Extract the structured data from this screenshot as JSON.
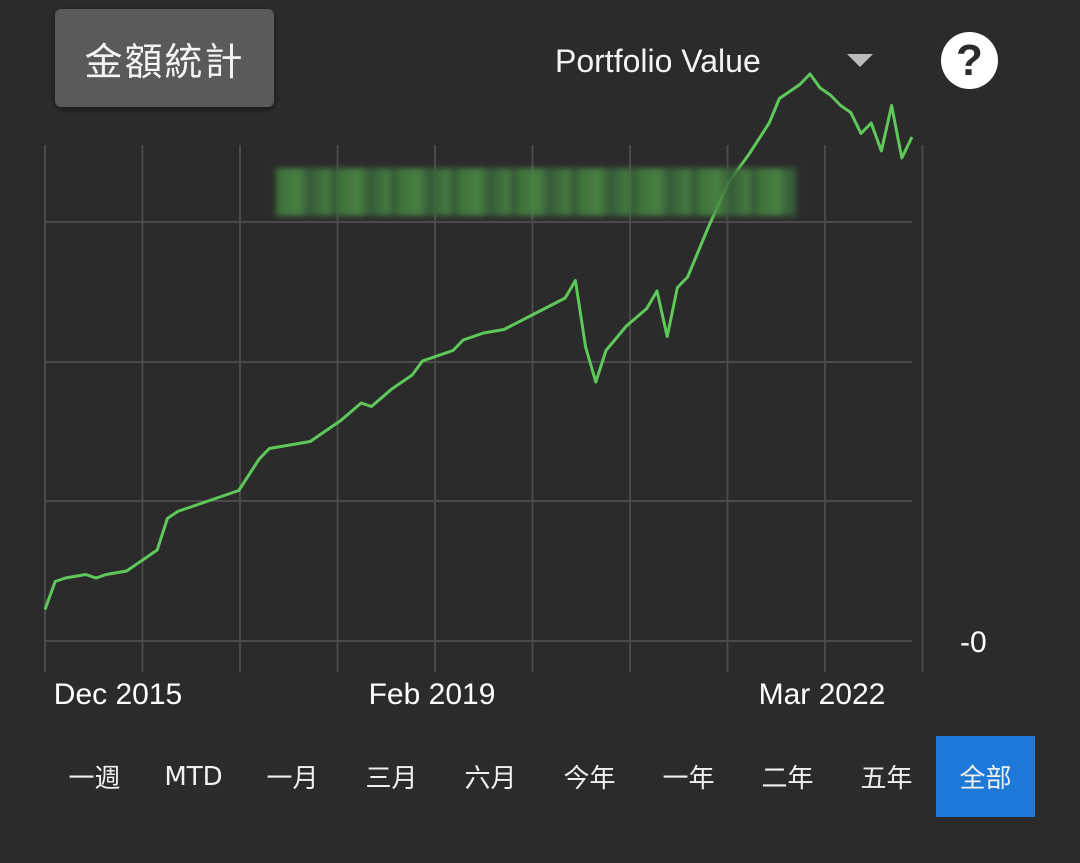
{
  "header": {
    "title": "金額統計",
    "metric_select": "Portfolio Value",
    "help_label": "?"
  },
  "colors": {
    "background": "#2b2b2b",
    "line": "#5ec95a",
    "grid": "#4a4a4a",
    "active_range": "#1e78d8"
  },
  "chart_data": {
    "type": "line",
    "x_tick_labels": [
      "Dec 2015",
      "Feb 2019",
      "Mar 2022"
    ],
    "y_tick_labels": [
      "-0"
    ],
    "x_range": [
      "2015-09",
      "2022-10"
    ],
    "grid": true,
    "series": [
      {
        "x": [
          "2015-09",
          "2015-10",
          "2015-11",
          "2016-01",
          "2016-02",
          "2016-03",
          "2016-05",
          "2016-06",
          "2016-08",
          "2016-09",
          "2016-10",
          "2016-11",
          "2016-12",
          "2017-02",
          "2017-04",
          "2017-06",
          "2017-07",
          "2017-09",
          "2017-11",
          "2017-12",
          "2018-02",
          "2018-04",
          "2018-05",
          "2018-07",
          "2018-09",
          "2018-10",
          "2018-12",
          "2019-01",
          "2019-02",
          "2019-04",
          "2019-06",
          "2019-08",
          "2019-10",
          "2019-12",
          "2020-01",
          "2020-02",
          "2020-03",
          "2020-04",
          "2020-06",
          "2020-08",
          "2020-09",
          "2020-10",
          "2020-11",
          "2020-12",
          "2021-02",
          "2021-04",
          "2021-06",
          "2021-08",
          "2021-09",
          "2021-11",
          "2021-12",
          "2022-01",
          "2022-02",
          "2022-03",
          "2022-04",
          "2022-05",
          "2022-06",
          "2022-07",
          "2022-08",
          "2022-09",
          "2022-10"
        ],
        "y": [
          0.09,
          0.17,
          0.18,
          0.19,
          0.18,
          0.19,
          0.2,
          0.22,
          0.26,
          0.35,
          0.37,
          0.38,
          0.39,
          0.41,
          0.43,
          0.52,
          0.55,
          0.56,
          0.57,
          0.59,
          0.63,
          0.68,
          0.67,
          0.72,
          0.76,
          0.8,
          0.82,
          0.83,
          0.86,
          0.88,
          0.89,
          0.92,
          0.95,
          0.98,
          1.03,
          0.84,
          0.74,
          0.83,
          0.9,
          0.95,
          1.0,
          0.87,
          1.01,
          1.04,
          1.18,
          1.31,
          1.39,
          1.48,
          1.55,
          1.59,
          1.62,
          1.58,
          1.56,
          1.53,
          1.51,
          1.45,
          1.48,
          1.4,
          1.53,
          1.38,
          1.44
        ]
      }
    ]
  },
  "ranges": [
    {
      "label": "一週"
    },
    {
      "label": "MTD"
    },
    {
      "label": "一月"
    },
    {
      "label": "三月"
    },
    {
      "label": "六月"
    },
    {
      "label": "今年"
    },
    {
      "label": "一年"
    },
    {
      "label": "二年"
    },
    {
      "label": "五年"
    },
    {
      "label": "全部",
      "active": true
    }
  ]
}
